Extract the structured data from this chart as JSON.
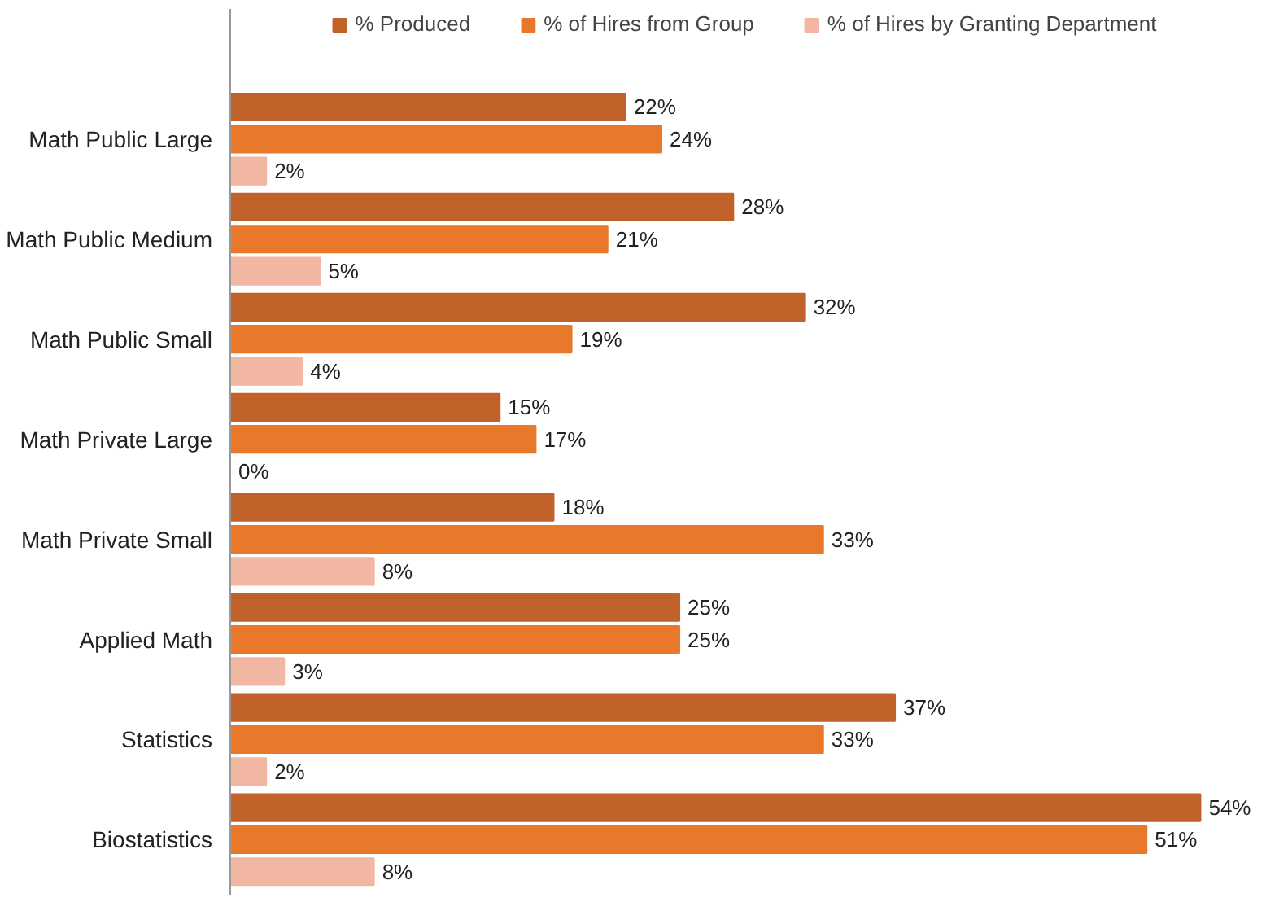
{
  "chart_data": {
    "type": "bar",
    "orientation": "horizontal",
    "legend": "top",
    "grid": false,
    "categories": [
      "Math Public Large",
      "Math Public Medium",
      "Math Public Small",
      "Math Private Large",
      "Math Private Small",
      "Applied Math",
      "Statistics",
      "Biostatistics"
    ],
    "series": [
      {
        "name": "% Produced",
        "color": "#c0622a",
        "values": [
          22,
          28,
          32,
          15,
          18,
          25,
          37,
          54
        ],
        "value_labels": [
          "22%",
          "28%",
          "32%",
          "15%",
          "18%",
          "25%",
          "37%",
          "54%"
        ]
      },
      {
        "name": "% of Hires from Group",
        "color": "#e8792a",
        "values": [
          24,
          21,
          19,
          17,
          33,
          25,
          33,
          51
        ],
        "value_labels": [
          "24%",
          "21%",
          "19%",
          "17%",
          "33%",
          "25%",
          "33%",
          "51%"
        ]
      },
      {
        "name": "% of Hires by Granting Department",
        "color": "#f2b7a2",
        "values": [
          2,
          5,
          4,
          0,
          8,
          3,
          2,
          8
        ],
        "value_labels": [
          "2%",
          "5%",
          "4%",
          "0%",
          "8%",
          "3%",
          "2%",
          "8%"
        ]
      }
    ]
  }
}
